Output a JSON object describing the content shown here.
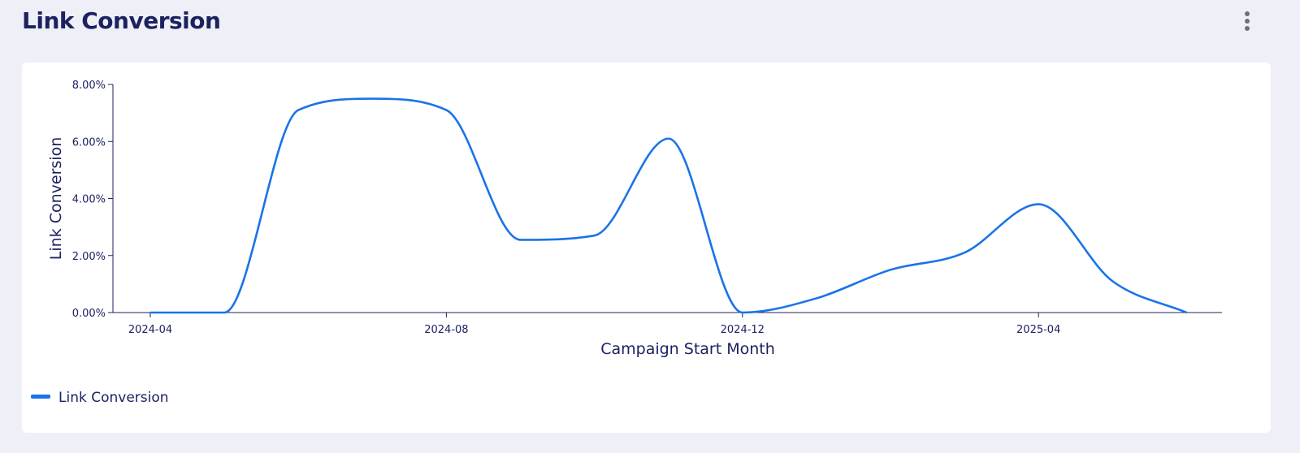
{
  "header": {
    "title": "Link Conversion",
    "menu_icon": "more-vertical-icon"
  },
  "chart_data": {
    "type": "line",
    "title": "",
    "xlabel": "Campaign Start Month",
    "ylabel": "Link Conversion",
    "xlim": [
      "2024-04",
      "2025-04"
    ],
    "ylim": [
      0,
      8
    ],
    "y_ticks": [
      "0.00%",
      "2.00%",
      "4.00%",
      "6.00%",
      "8.00%"
    ],
    "x_ticks": [
      "2024-04",
      "2024-08",
      "2024-12",
      "2025-04"
    ],
    "legend": {
      "position": "bottom-left",
      "entries": [
        "Link Conversion"
      ]
    },
    "series": [
      {
        "name": "Link Conversion",
        "color": "#1a73e8",
        "x": [
          "2024-04",
          "2024-05",
          "2024-06",
          "2024-07",
          "2024-08",
          "2024-09",
          "2024-10",
          "2024-11",
          "2024-12",
          "2025-01",
          "2025-02",
          "2025-03",
          "2025-04",
          "2025-05",
          "2025-06"
        ],
        "values": [
          0,
          0,
          7.1,
          7.5,
          7.1,
          2.55,
          2.7,
          6.1,
          0,
          0.5,
          1.5,
          2.1,
          3.8,
          1.1,
          0
        ]
      }
    ]
  }
}
